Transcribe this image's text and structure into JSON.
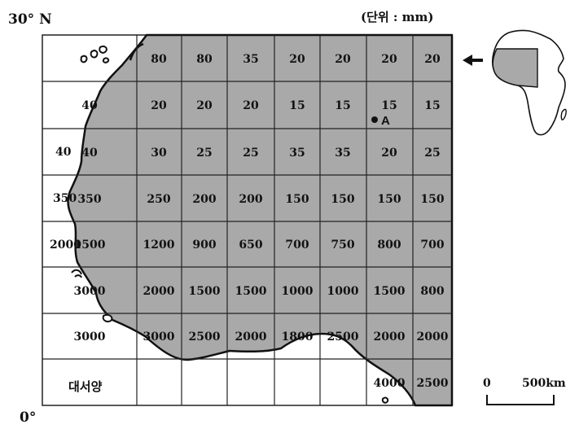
{
  "labels": {
    "lat_top": "30° N",
    "lat_bottom": "0°",
    "unit": "(단위 : mm)",
    "ocean": "대서양",
    "point_a": "A",
    "scale_zero": "0",
    "scale_distance": "500km"
  },
  "grid": [
    [
      "",
      "80",
      "80",
      "35",
      "20",
      "20",
      "20",
      "20"
    ],
    [
      "40",
      "20",
      "20",
      "20",
      "15",
      "15",
      "15",
      "15"
    ],
    [
      "40",
      "30",
      "25",
      "25",
      "35",
      "35",
      "20",
      "25"
    ],
    [
      "350",
      "250",
      "200",
      "200",
      "150",
      "150",
      "150",
      "150"
    ],
    [
      "1500",
      "1200",
      "900",
      "650",
      "700",
      "750",
      "800",
      "700"
    ],
    [
      "3000",
      "2000",
      "1500",
      "1500",
      "1000",
      "1000",
      "1500",
      "800"
    ],
    [
      "3000",
      "3000",
      "2500",
      "2000",
      "1800",
      "2500",
      "2000",
      "2000"
    ],
    [
      "",
      "",
      "",
      "",
      "",
      "",
      "4000",
      "2500"
    ]
  ],
  "outside_values": [
    "40",
    "350",
    "2000"
  ],
  "colors": {
    "land": "#a9a9a9",
    "grid_line": "#222222",
    "background": "#ffffff"
  }
}
